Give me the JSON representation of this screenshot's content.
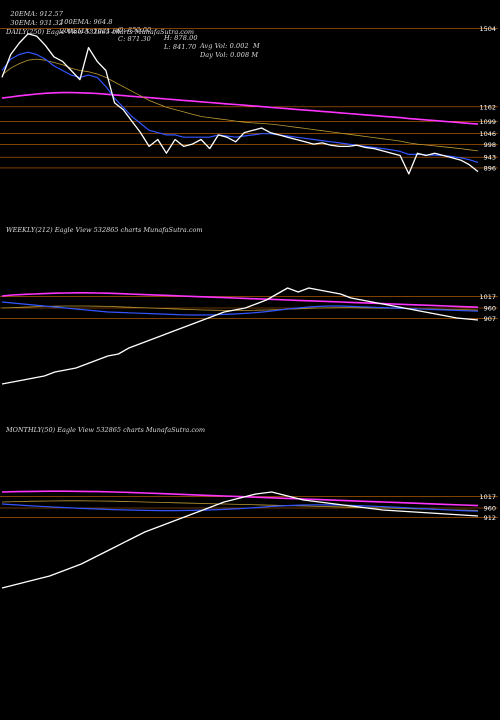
{
  "header": {
    "row1": [
      "20EMA: 912.57",
      "100EMA: 964.8",
      "O: 852.00",
      "H: 878.00",
      "Avg Vol: 0.002  M"
    ],
    "row2": [
      "30EMA: 931.32",
      "200EMA: 1021.68",
      "C: 871.30",
      "L: 841.70",
      "Day Vol: 0.008 M"
    ]
  },
  "chart_data": [
    {
      "type": "line",
      "title": "DAILY(250) Eagle  View  532865 charts MunafaSutra.com",
      "tick_labels": [
        "1504",
        "1162",
        "1099",
        "1046",
        "998",
        "943",
        "896"
      ],
      "level_lines": [
        1504,
        1162,
        1099,
        1046,
        998,
        943,
        896
      ],
      "ylim": [
        800,
        1540
      ],
      "grid": false,
      "colors": {
        "price": "#ffffff",
        "ema_fast": "#3355ff",
        "ema_slow": "#ff33ff",
        "ema_mid": "#bb9933",
        "level": "#cc6600"
      },
      "series": [
        {
          "role": "price",
          "values": [
            1290,
            1390,
            1440,
            1480,
            1470,
            1430,
            1380,
            1360,
            1320,
            1280,
            1420,
            1360,
            1320,
            1180,
            1150,
            1100,
            1050,
            990,
            1020,
            960,
            1020,
            990,
            1000,
            1020,
            980,
            1040,
            1030,
            1010,
            1050,
            1060,
            1070,
            1050,
            1040,
            1030,
            1020,
            1010,
            1000,
            1005,
            995,
            990,
            990,
            995,
            985,
            980,
            970,
            960,
            950,
            870,
            960,
            950,
            960,
            950,
            940,
            930,
            910,
            880
          ]
        },
        {
          "role": "ema_fast",
          "values": [
            1320,
            1370,
            1390,
            1400,
            1390,
            1370,
            1340,
            1320,
            1300,
            1290,
            1300,
            1290,
            1250,
            1200,
            1160,
            1120,
            1090,
            1060,
            1050,
            1040,
            1040,
            1030,
            1030,
            1030,
            1030,
            1040,
            1035,
            1030,
            1035,
            1040,
            1045,
            1045,
            1040,
            1035,
            1030,
            1025,
            1020,
            1015,
            1010,
            1005,
            1000,
            995,
            990,
            985,
            980,
            975,
            968,
            955,
            955,
            953,
            952,
            950,
            946,
            940,
            932,
            920
          ]
        },
        {
          "role": "ema_mid",
          "values": [
            1300,
            1330,
            1350,
            1365,
            1370,
            1365,
            1355,
            1345,
            1330,
            1320,
            1315,
            1305,
            1290,
            1270,
            1250,
            1230,
            1210,
            1190,
            1175,
            1160,
            1150,
            1140,
            1130,
            1120,
            1115,
            1110,
            1105,
            1100,
            1095,
            1092,
            1090,
            1087,
            1083,
            1078,
            1073,
            1068,
            1063,
            1058,
            1053,
            1048,
            1043,
            1038,
            1033,
            1028,
            1023,
            1018,
            1013,
            1005,
            1000,
            996,
            992,
            988,
            984,
            980,
            975,
            970
          ]
        },
        {
          "role": "ema_slow",
          "values": [
            1200,
            1205,
            1210,
            1214,
            1218,
            1221,
            1223,
            1224,
            1224,
            1223,
            1222,
            1220,
            1217,
            1214,
            1211,
            1208,
            1205,
            1202,
            1199,
            1196,
            1193,
            1190,
            1187,
            1184,
            1181,
            1178,
            1175,
            1172,
            1169,
            1166,
            1163,
            1160,
            1157,
            1154,
            1151,
            1148,
            1145,
            1142,
            1139,
            1136,
            1133,
            1130,
            1127,
            1124,
            1121,
            1118,
            1115,
            1111,
            1108,
            1105,
            1102,
            1099,
            1096,
            1093,
            1090,
            1087
          ]
        }
      ]
    },
    {
      "type": "line",
      "title": "WEEKLY(212) Eagle  View  532865 charts MunafaSutra.com",
      "tick_labels": [
        "1017",
        "960",
        "907"
      ],
      "level_lines": [
        1017,
        960,
        907
      ],
      "ylim": [
        500,
        1300
      ],
      "grid": false,
      "colors": {
        "price": "#ffffff",
        "ema_fast": "#3355ff",
        "ema_slow": "#ff33ff",
        "ema_mid": "#bb9933",
        "level": "#cc6600"
      },
      "series": [
        {
          "role": "price",
          "values": [
            580,
            590,
            600,
            610,
            620,
            640,
            650,
            660,
            680,
            700,
            720,
            730,
            760,
            780,
            800,
            820,
            840,
            860,
            880,
            900,
            920,
            940,
            950,
            960,
            980,
            1000,
            1030,
            1060,
            1040,
            1060,
            1050,
            1040,
            1030,
            1010,
            1000,
            990,
            980,
            970,
            960,
            950,
            940,
            930,
            920,
            910,
            905,
            900
          ]
        },
        {
          "role": "ema_fast",
          "values": [
            990,
            985,
            980,
            975,
            970,
            965,
            960,
            955,
            950,
            945,
            940,
            938,
            936,
            934,
            932,
            930,
            928,
            926,
            925,
            925,
            926,
            928,
            930,
            933,
            937,
            942,
            948,
            955,
            960,
            965,
            968,
            970,
            970,
            968,
            966,
            964,
            962,
            960,
            958,
            956,
            954,
            952,
            950,
            948,
            946,
            944
          ]
        },
        {
          "role": "ema_slow",
          "values": [
            1020,
            1025,
            1028,
            1030,
            1032,
            1034,
            1035,
            1036,
            1036,
            1035,
            1034,
            1032,
            1030,
            1028,
            1026,
            1024,
            1022,
            1020,
            1018,
            1016,
            1014,
            1012,
            1010,
            1008,
            1006,
            1004,
            1002,
            1000,
            998,
            996,
            994,
            992,
            990,
            988,
            986,
            984,
            982,
            980,
            978,
            976,
            974,
            972,
            970,
            968,
            966,
            964
          ]
        },
        {
          "role": "ema_mid",
          "values": [
            960,
            962,
            964,
            966,
            968,
            969,
            970,
            970,
            970,
            969,
            968,
            966,
            964,
            962,
            960,
            958,
            956,
            954,
            952,
            950,
            949,
            948,
            948,
            948,
            949,
            950,
            952,
            954,
            956,
            958,
            960,
            961,
            962,
            962,
            961,
            960,
            959,
            958,
            957,
            956,
            955,
            954,
            953,
            952,
            951,
            950
          ]
        }
      ]
    },
    {
      "type": "line",
      "title": "MONTHLY(50) Eagle  View  532865 charts MunafaSutra.com",
      "tick_labels": [
        "1017",
        "960",
        "912"
      ],
      "level_lines": [
        1017,
        960,
        912
      ],
      "ylim": [
        500,
        1300
      ],
      "grid": false,
      "colors": {
        "price": "#ffffff",
        "ema_fast": "#3355ff",
        "ema_slow": "#ff33ff",
        "ema_mid": "#bb9933",
        "level": "#cc6600"
      },
      "series": [
        {
          "role": "price",
          "values": [
            560,
            580,
            600,
            620,
            650,
            680,
            720,
            760,
            800,
            840,
            870,
            900,
            930,
            960,
            990,
            1010,
            1030,
            1040,
            1020,
            1000,
            990,
            980,
            970,
            960,
            950,
            945,
            940,
            935,
            930,
            925,
            920
          ]
        },
        {
          "role": "ema_fast",
          "values": [
            980,
            975,
            970,
            966,
            962,
            958,
            955,
            952,
            950,
            948,
            947,
            947,
            948,
            950,
            953,
            957,
            962,
            968,
            972,
            975,
            976,
            975,
            973,
            970,
            967,
            963,
            959,
            955,
            951,
            947,
            944
          ]
        },
        {
          "role": "ema_slow",
          "values": [
            1040,
            1042,
            1043,
            1044,
            1044,
            1043,
            1042,
            1040,
            1038,
            1035,
            1032,
            1029,
            1026,
            1023,
            1020,
            1017,
            1014,
            1011,
            1008,
            1005,
            1002,
            999,
            996,
            993,
            990,
            987,
            984,
            981,
            978,
            975,
            972
          ]
        },
        {
          "role": "ema_mid",
          "values": [
            990,
            992,
            994,
            995,
            996,
            996,
            995,
            994,
            992,
            990,
            988,
            986,
            984,
            982,
            980,
            978,
            976,
            974,
            972,
            970,
            968,
            966,
            964,
            962,
            960,
            958,
            956,
            954,
            952,
            950,
            948
          ]
        }
      ]
    }
  ]
}
